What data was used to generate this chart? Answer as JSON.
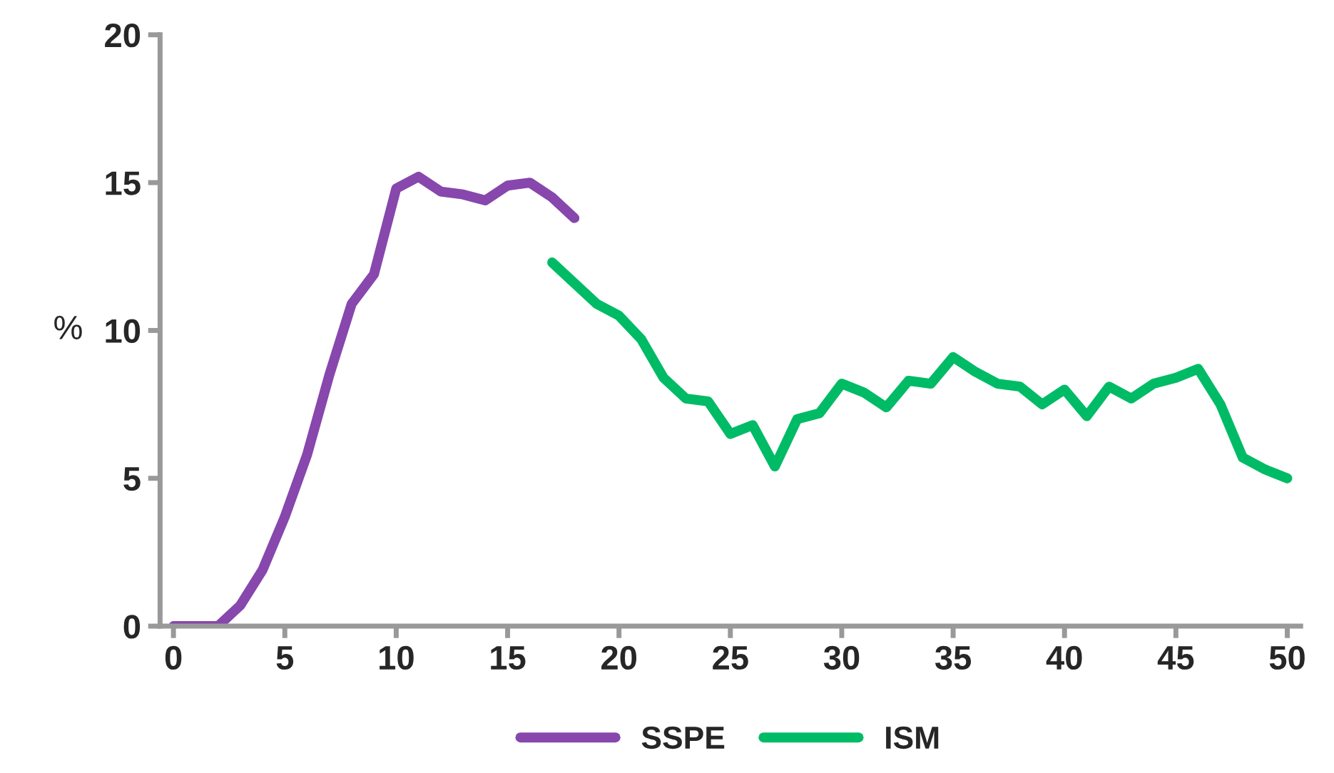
{
  "chart_data": {
    "type": "line",
    "ylabel": "%",
    "xlim": [
      -0.6,
      50.6
    ],
    "xticks": [
      0,
      5,
      10,
      15,
      20,
      25,
      30,
      35,
      40,
      45,
      50
    ],
    "ylim": [
      0,
      20
    ],
    "yticks": [
      0,
      5,
      10,
      15,
      20
    ],
    "grid": false,
    "legend": "bottom",
    "marker": "none",
    "line_style": "solid",
    "series": [
      {
        "name": "SSPE",
        "color": "#8747ac",
        "x": [
          0,
          1,
          2,
          3,
          4,
          5,
          6,
          7,
          8,
          9,
          10,
          11,
          12,
          13,
          14,
          15,
          16,
          17,
          18
        ],
        "values": [
          0,
          0,
          0,
          0.7,
          1.9,
          3.7,
          5.8,
          8.5,
          10.9,
          11.9,
          14.8,
          15.2,
          14.7,
          14.6,
          14.4,
          14.9,
          15.0,
          14.5,
          13.8
        ]
      },
      {
        "name": "ISM",
        "color": "#00bb66",
        "x": [
          17,
          18,
          19,
          20,
          21,
          22,
          23,
          24,
          25,
          26,
          27,
          28,
          29,
          30,
          31,
          32,
          33,
          34,
          35,
          36,
          37,
          38,
          39,
          40,
          41,
          42,
          43,
          44,
          45,
          46,
          47,
          48,
          49,
          50
        ],
        "values": [
          12.3,
          11.6,
          10.9,
          10.5,
          9.7,
          8.4,
          7.7,
          7.6,
          6.5,
          6.8,
          5.4,
          7.0,
          7.2,
          8.2,
          7.9,
          7.4,
          8.3,
          8.2,
          9.1,
          8.6,
          8.2,
          8.1,
          7.5,
          8.0,
          7.1,
          8.1,
          7.7,
          8.2,
          8.4,
          8.7,
          7.5,
          5.7,
          5.3,
          5.0
        ]
      }
    ]
  }
}
